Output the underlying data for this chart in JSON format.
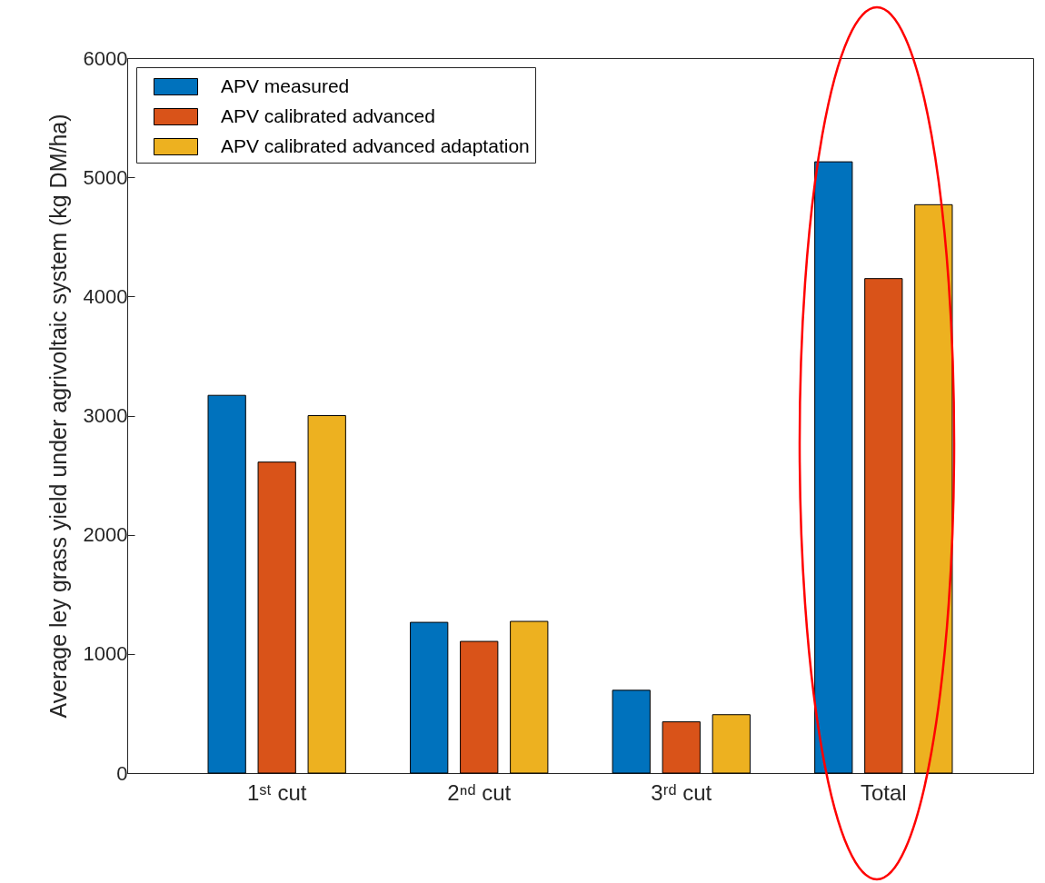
{
  "chart_data": {
    "type": "bar",
    "ylabel": "Average ley grass yield under agrivoltaic system (kg DM/ha)",
    "categories": [
      "1ˢᵗ cut",
      "2ⁿᵈ cut",
      "3ʳᵈ cut",
      "Total"
    ],
    "series": [
      {
        "name": "APV measured",
        "color": "#0072bd",
        "values": [
          3170,
          1265,
          695,
          5130
        ]
      },
      {
        "name": "APV calibrated advanced",
        "color": "#d95319",
        "values": [
          2610,
          1105,
          430,
          4150
        ]
      },
      {
        "name": "APV calibrated advanced adaptation",
        "color": "#edb120",
        "values": [
          3000,
          1273,
          490,
          4770
        ]
      }
    ],
    "ylim": [
      0,
      6000
    ],
    "yticks": [
      0,
      1000,
      2000,
      3000,
      4000,
      5000,
      6000
    ],
    "legend": "top left"
  }
}
